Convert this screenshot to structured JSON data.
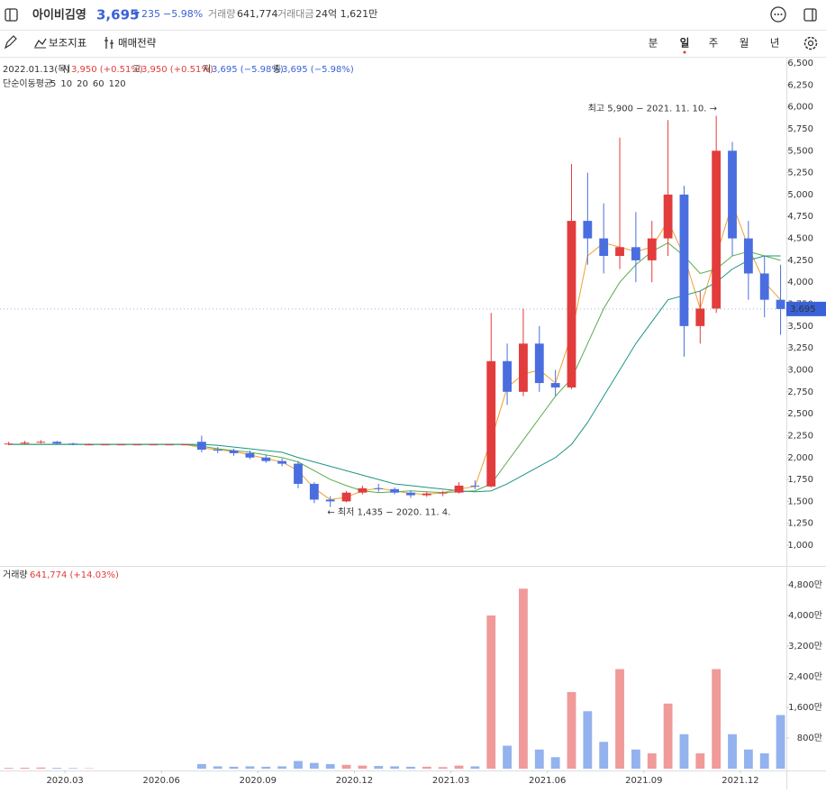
{
  "header": {
    "name": "아이비김영",
    "price": "3,695",
    "change": "235",
    "change_pct": "−5.98%",
    "volume_label": "거래량",
    "volume": "641,774",
    "amount_label": "거래대금",
    "amount": "24억 1,621만"
  },
  "toolbar": {
    "indicators": "보조지표",
    "strategy": "매매전략",
    "periods": [
      "분",
      "일",
      "주",
      "월",
      "년"
    ]
  },
  "chart_data": [
    {
      "type": "candlestick",
      "info": {
        "date": "2022.01.13(목)",
        "open_label": "시",
        "open": "3,950 (+0.51%)",
        "high_label": "고",
        "high": "3,950 (+0.51%)",
        "low_label": "저",
        "low": "3,695 (−5.98%)",
        "close_label": "종",
        "close": "3,695 (−5.98%)"
      },
      "ma_label": "단순이동평균",
      "ma": [
        {
          "name": "5",
          "color": "#e8506a"
        },
        {
          "name": "10",
          "color": "#f07c1e"
        },
        {
          "name": "20",
          "color": "#f0a030",
          "values": [
            2150,
            2150,
            2150,
            2150,
            2150,
            2150,
            2150,
            2150,
            2150,
            2150,
            2150,
            2150,
            2110,
            2090,
            2070,
            2030,
            1990,
            1950,
            1850,
            1650,
            1520,
            1550,
            1620,
            1650,
            1620,
            1590,
            1580,
            1600,
            1640,
            1670,
            2200,
            2800,
            2950,
            3000,
            2850,
            3400,
            4300,
            4450,
            4400,
            4350,
            4400,
            4700,
            4300,
            3700,
            4300,
            4900,
            4400,
            4000,
            3800
          ]
        },
        {
          "name": "60",
          "color": "#5aac4a",
          "values": [
            2150,
            2150,
            2150,
            2150,
            2150,
            2150,
            2150,
            2150,
            2150,
            2150,
            2150,
            2150,
            2130,
            2100,
            2080,
            2060,
            2030,
            2000,
            1950,
            1850,
            1750,
            1680,
            1620,
            1600,
            1610,
            1620,
            1610,
            1600,
            1610,
            1620,
            1700,
            1950,
            2200,
            2450,
            2700,
            2900,
            3300,
            3700,
            4000,
            4200,
            4350,
            4450,
            4300,
            4100,
            4150,
            4300,
            4350,
            4300,
            4250
          ]
        },
        {
          "name": "120",
          "color": "#1e9484",
          "values": [
            2150,
            2150,
            2150,
            2150,
            2150,
            2150,
            2150,
            2150,
            2150,
            2150,
            2150,
            2150,
            2150,
            2140,
            2120,
            2100,
            2080,
            2060,
            2000,
            1950,
            1900,
            1850,
            1800,
            1750,
            1700,
            1680,
            1660,
            1640,
            1620,
            1610,
            1620,
            1700,
            1800,
            1900,
            2000,
            2150,
            2400,
            2700,
            3000,
            3300,
            3550,
            3800,
            3850,
            3900,
            4000,
            4150,
            4250,
            4300,
            4300
          ]
        }
      ],
      "up_color": "#e23c3c",
      "down_color": "#4a6ee0",
      "x": [
        1.25,
        1.75,
        2.25,
        2.75,
        3.25,
        3.75,
        4.25,
        4.75,
        5.25,
        5.75,
        6.25,
        6.75,
        7.25,
        7.75,
        8.25,
        8.75,
        9.25,
        9.75,
        10.25,
        10.75,
        11.25,
        11.75,
        12.25,
        12.75,
        13.25,
        13.75,
        14.25,
        14.75,
        15.25,
        15.75,
        16.25,
        16.75,
        17.25,
        17.75,
        18.25,
        18.75,
        19.25,
        19.75,
        20.25,
        20.75,
        21.25,
        21.75,
        22.25,
        22.75,
        23.25,
        23.75,
        24.25,
        24.75,
        25.25
      ],
      "open": [
        2150,
        2160,
        2170,
        2180,
        2160,
        2150,
        2150,
        2150,
        2150,
        2150,
        2150,
        2150,
        2180,
        2090,
        2080,
        2050,
        2000,
        1960,
        1930,
        1700,
        1520,
        1500,
        1600,
        1650,
        1640,
        1600,
        1570,
        1590,
        1600,
        1680,
        1670,
        3100,
        2750,
        3300,
        2850,
        2800,
        4700,
        4500,
        4300,
        4400,
        4250,
        4500,
        5000,
        3500,
        3700,
        5500,
        4500,
        4100,
        3800
      ],
      "high": [
        2180,
        2190,
        2200,
        2190,
        2170,
        2160,
        2150,
        2150,
        2150,
        2150,
        2150,
        2150,
        2250,
        2120,
        2100,
        2080,
        2030,
        1990,
        1960,
        1720,
        1560,
        1620,
        1680,
        1700,
        1660,
        1620,
        1610,
        1620,
        1720,
        1740,
        3650,
        3300,
        3700,
        3500,
        3000,
        5350,
        5250,
        4900,
        5650,
        4800,
        4700,
        5850,
        5100,
        3900,
        5900,
        5600,
        4700,
        4300,
        4200
      ],
      "low": [
        2140,
        2150,
        2160,
        2150,
        2140,
        2140,
        2150,
        2150,
        2150,
        2150,
        2150,
        2150,
        2060,
        2050,
        2020,
        1980,
        1940,
        1900,
        1650,
        1480,
        1435,
        1490,
        1580,
        1610,
        1580,
        1540,
        1550,
        1560,
        1590,
        1640,
        1660,
        2600,
        2700,
        2750,
        2700,
        2780,
        4200,
        4100,
        4150,
        4000,
        4000,
        4300,
        3150,
        3300,
        3650,
        4300,
        3800,
        3600,
        3400
      ],
      "close": [
        2160,
        2170,
        2180,
        2160,
        2150,
        2150,
        2150,
        2150,
        2150,
        2150,
        2150,
        2150,
        2090,
        2080,
        2050,
        2000,
        1960,
        1930,
        1700,
        1520,
        1500,
        1600,
        1650,
        1640,
        1600,
        1570,
        1590,
        1600,
        1680,
        1670,
        3100,
        2750,
        3300,
        2850,
        2800,
        4700,
        4500,
        4300,
        4400,
        4250,
        4500,
        5000,
        3500,
        3700,
        5500,
        4500,
        4100,
        3800,
        3695
      ],
      "xlim": [
        0.98,
        25.43
      ],
      "ylim": [
        764,
        6572
      ],
      "yticks": [
        {
          "value": 1000,
          "label": "1,000"
        },
        {
          "value": 1250,
          "label": "1,250"
        },
        {
          "value": 1500,
          "label": "1,500"
        },
        {
          "value": 1750,
          "label": "1,750"
        },
        {
          "value": 2000,
          "label": "2,000"
        },
        {
          "value": 2250,
          "label": "2,250"
        },
        {
          "value": 2500,
          "label": "2,500"
        },
        {
          "value": 2750,
          "label": "2,750"
        },
        {
          "value": 3000,
          "label": "3,000"
        },
        {
          "value": 3250,
          "label": "3,250"
        },
        {
          "value": 3500,
          "label": "3,500"
        },
        {
          "value": 3750,
          "label": "3,750"
        },
        {
          "value": 4000,
          "label": "4,000"
        },
        {
          "value": 4250,
          "label": "4,250"
        },
        {
          "value": 4500,
          "label": "4,500"
        },
        {
          "value": 4750,
          "label": "4,750"
        },
        {
          "value": 5000,
          "label": "5,000"
        },
        {
          "value": 5250,
          "label": "5,250"
        },
        {
          "value": 5500,
          "label": "5,500"
        },
        {
          "value": 5750,
          "label": "5,750"
        },
        {
          "value": 6000,
          "label": "6,000"
        },
        {
          "value": 6250,
          "label": "6,250"
        },
        {
          "value": 6500,
          "label": "6,500"
        }
      ],
      "price_tag": {
        "value": 3695,
        "label": "3,695"
      },
      "annotations": [
        {
          "x": 23.33,
          "value": 5900,
          "label": "최고 5,900 − 2021. 11. 10. →"
        },
        {
          "x": 11.1,
          "value": 1435,
          "label": "← 최저 1,435 − 2020. 11. 4."
        }
      ]
    },
    {
      "type": "bar",
      "title": "거래량",
      "subtitle": "641,774 (+14.03%)",
      "values": [
        20,
        25,
        30,
        20,
        15,
        10,
        0,
        0,
        0,
        0,
        0,
        0,
        120,
        60,
        50,
        60,
        50,
        60,
        200,
        150,
        120,
        100,
        80,
        70,
        60,
        50,
        50,
        40,
        80,
        60,
        4000,
        600,
        4700,
        500,
        300,
        2000,
        1500,
        700,
        2600,
        500,
        400,
        1700,
        900,
        400,
        2600,
        900,
        500,
        400,
        1400
      ],
      "ylim": [
        0,
        5247
      ],
      "yticks": [
        {
          "value": 800,
          "label": "800만"
        },
        {
          "value": 1600,
          "label": "1,600만"
        },
        {
          "value": 2400,
          "label": "2,400만"
        },
        {
          "value": 3200,
          "label": "3,200만"
        },
        {
          "value": 4000,
          "label": "4,000만"
        },
        {
          "value": 4800,
          "label": "4,800만"
        }
      ],
      "xticks": [
        {
          "value": 3,
          "label": "2020.03"
        },
        {
          "value": 6,
          "label": "2020.06"
        },
        {
          "value": 9,
          "label": "2020.09"
        },
        {
          "value": 12,
          "label": "2020.12"
        },
        {
          "value": 15,
          "label": "2021.03"
        },
        {
          "value": 18,
          "label": "2021.06"
        },
        {
          "value": 21,
          "label": "2021.09"
        },
        {
          "value": 24,
          "label": "2021.12"
        }
      ]
    }
  ]
}
